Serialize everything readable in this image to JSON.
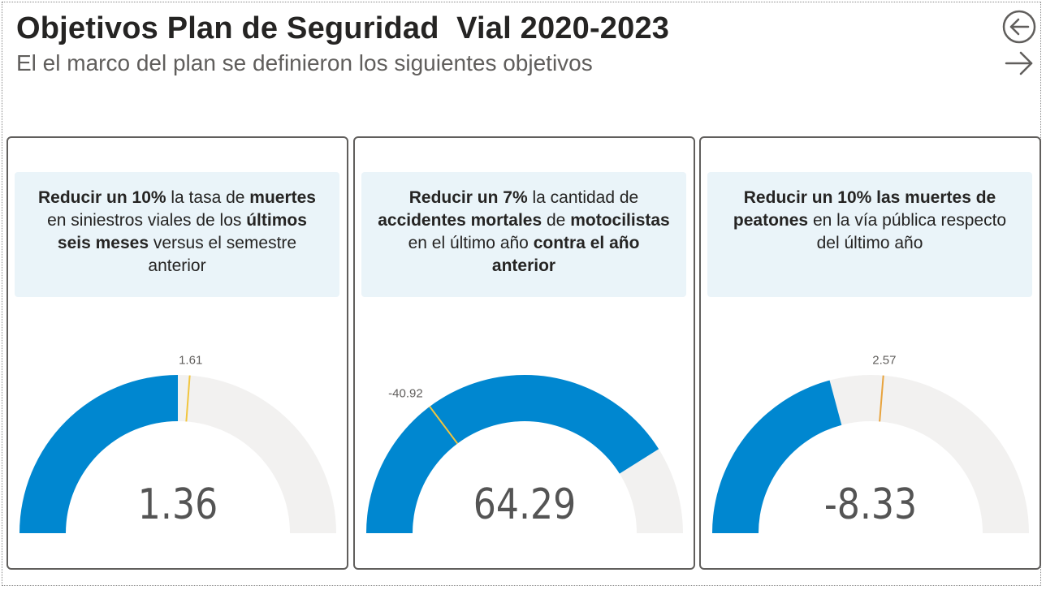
{
  "header": {
    "title": "Objetivos Plan de Seguridad  Vial 2020-2023",
    "subtitle": "El el marco del plan se definieron los siguientes objetivos"
  },
  "nav": {
    "back_icon": "circle-arrow-left-icon",
    "next_icon": "arrow-right-icon"
  },
  "colors": {
    "fill": "#0087d0",
    "track": "#f2f1f0",
    "target_marker": "#f2c53d",
    "target_marker_alt": "#e8a33d"
  },
  "cards": [
    {
      "objective": [
        {
          "t": "Reducir un 10%",
          "b": true
        },
        {
          "t": " la tasa de ",
          "b": false
        },
        {
          "t": "muertes",
          "b": true
        },
        {
          "t": " en siniestros viales de los ",
          "b": false
        },
        {
          "t": "últimos seis meses",
          "b": true
        },
        {
          "t": " versus el semestre anterior",
          "b": false
        }
      ]
    },
    {
      "objective": [
        {
          "t": "Reducir un 7%",
          "b": true
        },
        {
          "t": " la cantidad de ",
          "b": false
        },
        {
          "t": "accidentes mortales",
          "b": true
        },
        {
          "t": " de ",
          "b": false
        },
        {
          "t": "motocilistas",
          "b": true
        },
        {
          "t": " en el último año ",
          "b": false
        },
        {
          "t": "contra el año anterior",
          "b": true
        }
      ]
    },
    {
      "objective": [
        {
          "t": "Reducir un 10% las muertes de peatones",
          "b": true
        },
        {
          "t": " en la vía pública respecto del último año",
          "b": false
        }
      ]
    }
  ],
  "chart_data": [
    {
      "type": "gauge",
      "value": 1.36,
      "value_label": "1.36",
      "target": 1.61,
      "target_label": "1.61",
      "min": -3.86,
      "max": 6.58,
      "marker_color": "#f2c53d"
    },
    {
      "type": "gauge",
      "value": 64.29,
      "value_label": "64.29",
      "target": -40.92,
      "target_label": "-40.92",
      "min": -100,
      "max": 100,
      "marker_color": "#f2c53d"
    },
    {
      "type": "gauge",
      "value": -8.33,
      "value_label": "-8.33",
      "target": 2.57,
      "target_label": "2.57",
      "min": -50,
      "max": 50,
      "marker_color": "#e8a33d"
    }
  ]
}
